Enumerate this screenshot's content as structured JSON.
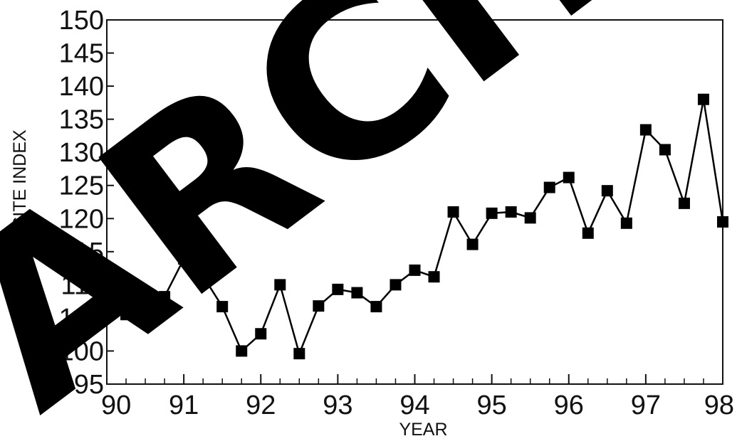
{
  "chart_data": {
    "type": "line",
    "title": "",
    "xlabel": "YEAR",
    "ylabel": "COMPOSITE INDEX",
    "xlim": [
      90,
      98
    ],
    "ylim": [
      95,
      150
    ],
    "x_ticks": [
      "90",
      "91",
      "92",
      "93",
      "94",
      "95",
      "96",
      "97",
      "98"
    ],
    "y_ticks": [
      "95",
      "100",
      "105",
      "110",
      "115",
      "120",
      "125",
      "130",
      "135",
      "140",
      "145",
      "150"
    ],
    "grid": false,
    "legend": "none",
    "marker": "square",
    "series": [
      {
        "color": "#000000",
        "x": [
          90.0,
          90.25,
          90.5,
          90.75,
          91.0,
          91.25,
          91.5,
          91.75,
          92.0,
          92.25,
          92.5,
          92.75,
          93.0,
          93.25,
          93.5,
          93.75,
          94.0,
          94.25,
          94.5,
          94.75,
          95.0,
          95.25,
          95.5,
          95.75,
          96.0,
          96.25,
          96.5,
          96.75,
          97.0,
          97.25,
          97.5,
          97.75,
          98.0
        ],
        "y": [
          110.6,
          105.5,
          108.7,
          108.2,
          113.9,
          111.3,
          106.7,
          100.0,
          102.6,
          110.0,
          99.6,
          106.8,
          109.3,
          108.8,
          106.7,
          110.0,
          112.2,
          111.2,
          121.0,
          116.1,
          120.8,
          121.0,
          120.1,
          124.7,
          126.2,
          117.8,
          124.2,
          119.3,
          133.4,
          130.4,
          122.3,
          138.0,
          119.5
        ]
      }
    ]
  },
  "watermark": {
    "text": "ARCHIVE",
    "color": "#000000"
  }
}
